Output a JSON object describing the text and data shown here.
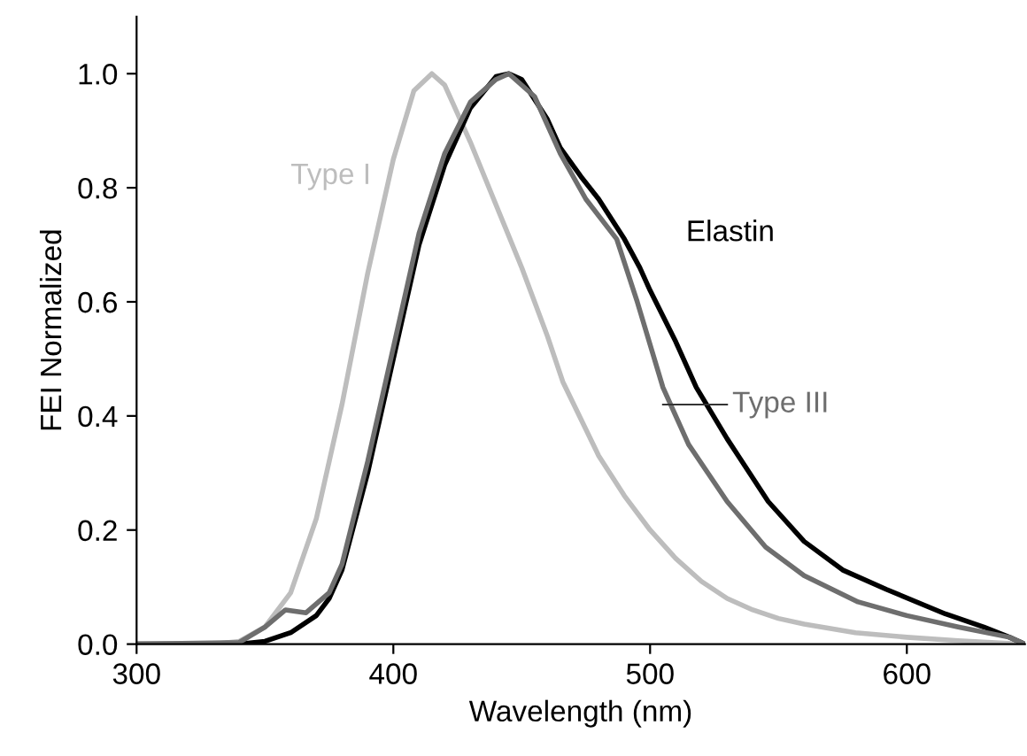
{
  "chart_data": {
    "type": "line",
    "xlabel": "Wavelength (nm)",
    "ylabel": "FEI Normalized",
    "xlim": [
      300,
      646
    ],
    "xticks": [
      300,
      400,
      500,
      600
    ],
    "ylim": [
      0,
      1.1
    ],
    "yticks": [
      {
        "value": 0,
        "label": "0.0"
      },
      {
        "value": 0.2,
        "label": "0.2"
      },
      {
        "value": 0.4,
        "label": "0.4"
      },
      {
        "value": 0.6,
        "label": "0.6"
      },
      {
        "value": 0.8,
        "label": "0.8"
      },
      {
        "value": 1.0,
        "label": "1.0"
      }
    ],
    "grid": false,
    "legend": false,
    "marker": "none",
    "line_style": "solid",
    "series": [
      {
        "name": "Type I",
        "color": "#bdbdbd",
        "x": [
          300,
          330,
          340,
          350,
          360,
          370,
          380,
          390,
          400,
          408,
          415,
          420,
          430,
          440,
          450,
          460,
          466,
          480,
          490,
          500,
          510,
          520,
          530,
          540,
          550,
          560,
          580,
          600,
          620,
          645
        ],
        "values": [
          0,
          0,
          0.005,
          0.03,
          0.09,
          0.22,
          0.42,
          0.65,
          0.85,
          0.97,
          1.0,
          0.98,
          0.88,
          0.77,
          0.66,
          0.54,
          0.46,
          0.33,
          0.26,
          0.2,
          0.15,
          0.11,
          0.08,
          0.06,
          0.045,
          0.035,
          0.02,
          0.012,
          0.006,
          0
        ]
      },
      {
        "name": "Elastin",
        "color": "#000000",
        "x": [
          300,
          340,
          350,
          360,
          370,
          375,
          380,
          390,
          400,
          410,
          420,
          430,
          440,
          445,
          450,
          460,
          465,
          473,
          480,
          490,
          496,
          500,
          510,
          518,
          530,
          546,
          560,
          575,
          592,
          615,
          630,
          640,
          646
        ],
        "values": [
          0,
          0,
          0.005,
          0.02,
          0.05,
          0.08,
          0.13,
          0.3,
          0.5,
          0.7,
          0.84,
          0.94,
          0.995,
          1.0,
          0.99,
          0.92,
          0.87,
          0.82,
          0.78,
          0.71,
          0.66,
          0.62,
          0.53,
          0.45,
          0.36,
          0.25,
          0.18,
          0.13,
          0.096,
          0.053,
          0.03,
          0.012,
          0
        ]
      },
      {
        "name": "Type III",
        "color": "#6e6e6e",
        "x": [
          300,
          340,
          350,
          358,
          366,
          375,
          380,
          390,
          400,
          410,
          420,
          430,
          440,
          445,
          455,
          465,
          475,
          487,
          495,
          505,
          515,
          530,
          545,
          560,
          581,
          600,
          620,
          640,
          646
        ],
        "values": [
          0,
          0.003,
          0.03,
          0.06,
          0.055,
          0.09,
          0.14,
          0.32,
          0.52,
          0.72,
          0.86,
          0.95,
          0.99,
          1.0,
          0.96,
          0.86,
          0.78,
          0.71,
          0.6,
          0.45,
          0.35,
          0.25,
          0.17,
          0.12,
          0.074,
          0.05,
          0.03,
          0.012,
          0
        ]
      }
    ]
  }
}
